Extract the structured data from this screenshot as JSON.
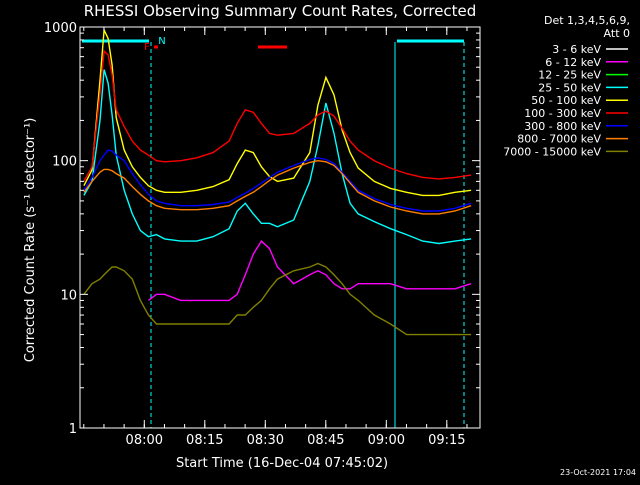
{
  "chart_data": {
    "type": "line",
    "title": "RHESSI Observing Summary Count Rates, Corrected",
    "xlabel": "Start Time (16-Dec-04 07:45:02)",
    "ylabel": "Corrected Count Rate (s⁻¹ detector⁻¹)",
    "yscale": "log",
    "ylim": [
      1,
      1000
    ],
    "xlim_minutes": [
      -0.97,
      98.2
    ],
    "x_unit": "minutes after 07:45:02",
    "xtick_labels": [
      "08:00",
      "08:15",
      "08:30",
      "08:45",
      "09:00",
      "09:15"
    ],
    "xtick_minutes": [
      14.97,
      29.97,
      44.97,
      59.97,
      74.97,
      89.97
    ],
    "ytick_labels": [
      "1",
      "10",
      "100",
      "1000"
    ],
    "ytick_values": [
      1,
      10,
      100,
      1000
    ],
    "grid": false,
    "legend_header": [
      "Det 1,3,4,5,6,9,",
      "Att 0"
    ],
    "legend_position": "right",
    "timestamp": "23-Oct-2021 17:04",
    "x": [
      0,
      2,
      4,
      5,
      6,
      7,
      8,
      10,
      12,
      14,
      16,
      18,
      20,
      24,
      28,
      32,
      36,
      38,
      40,
      42,
      44,
      46,
      48,
      52,
      56,
      58,
      60,
      62,
      64,
      66,
      68,
      72,
      76,
      80,
      84,
      88,
      92,
      96
    ],
    "series": [
      {
        "name": "3 - 6 keV",
        "color": "#ffffff",
        "values": [
          null,
          null,
          null,
          null,
          null,
          null,
          null,
          null,
          null,
          null,
          null,
          null,
          null,
          null,
          null,
          null,
          null,
          null,
          null,
          null,
          null,
          null,
          null,
          null,
          null,
          null,
          null,
          null,
          null,
          null,
          null,
          null,
          null,
          null,
          null,
          null,
          null,
          null
        ]
      },
      {
        "name": "6 - 12 keV",
        "color": "#ff00ff",
        "values": [
          null,
          null,
          null,
          null,
          null,
          null,
          null,
          null,
          null,
          null,
          9,
          10,
          10,
          9,
          9,
          9,
          9,
          10,
          14,
          20,
          25,
          22,
          16,
          12,
          14,
          15,
          14,
          12,
          11,
          11,
          12,
          12,
          12,
          11,
          11,
          11,
          11,
          12
        ]
      },
      {
        "name": "12 - 25 keV",
        "color": "#00ff00",
        "values": [
          null,
          null,
          null,
          null,
          null,
          null,
          null,
          null,
          null,
          null,
          null,
          null,
          null,
          null,
          null,
          null,
          null,
          null,
          null,
          null,
          null,
          null,
          null,
          null,
          null,
          null,
          null,
          null,
          null,
          null,
          null,
          null,
          null,
          null,
          null,
          null,
          null,
          null
        ]
      },
      {
        "name": "25 - 50 keV",
        "color": "#00ffff",
        "values": [
          55,
          70,
          200,
          480,
          380,
          220,
          110,
          60,
          40,
          30,
          27,
          28,
          26,
          25,
          25,
          27,
          31,
          42,
          48,
          40,
          34,
          34,
          32,
          36,
          70,
          130,
          270,
          160,
          80,
          48,
          40,
          35,
          31,
          28,
          25,
          24,
          25,
          26
        ]
      },
      {
        "name": "50 - 100 keV",
        "color": "#ffff00",
        "values": [
          65,
          85,
          400,
          950,
          820,
          520,
          210,
          120,
          90,
          75,
          65,
          60,
          58,
          58,
          60,
          64,
          72,
          95,
          120,
          115,
          90,
          76,
          70,
          74,
          115,
          260,
          420,
          310,
          170,
          115,
          88,
          70,
          62,
          58,
          55,
          55,
          58,
          60
        ]
      },
      {
        "name": "100 - 300 keV",
        "color": "#ff0000",
        "values": [
          70,
          90,
          320,
          660,
          620,
          440,
          240,
          180,
          140,
          120,
          110,
          100,
          98,
          100,
          105,
          115,
          140,
          190,
          240,
          230,
          190,
          160,
          155,
          160,
          190,
          220,
          235,
          215,
          175,
          140,
          120,
          100,
          88,
          80,
          75,
          73,
          75,
          78
        ]
      },
      {
        "name": "300 - 800 keV",
        "color": "#0000ff",
        "values": [
          60,
          75,
          100,
          110,
          120,
          118,
          110,
          100,
          80,
          66,
          56,
          50,
          48,
          46,
          46,
          47,
          49,
          53,
          57,
          62,
          68,
          75,
          82,
          92,
          102,
          105,
          102,
          95,
          82,
          70,
          60,
          52,
          47,
          44,
          42,
          42,
          44,
          48
        ]
      },
      {
        "name": "800 - 7000 keV",
        "color": "#ff8000",
        "values": [
          58,
          70,
          82,
          86,
          86,
          84,
          80,
          74,
          64,
          56,
          50,
          46,
          44,
          43,
          43,
          44,
          46,
          50,
          54,
          58,
          64,
          71,
          78,
          88,
          97,
          100,
          98,
          92,
          80,
          68,
          58,
          50,
          45,
          42,
          40,
          40,
          42,
          46
        ]
      },
      {
        "name": "7000 - 15000 keV",
        "color": "#808000",
        "values": [
          10,
          12,
          13,
          14,
          15,
          16,
          16,
          15,
          13,
          9,
          7,
          6,
          6,
          6,
          6,
          6,
          6,
          7,
          7,
          8,
          9,
          11,
          13,
          15,
          16,
          17,
          16,
          14,
          12,
          10,
          9,
          7,
          6,
          5,
          5,
          5,
          5,
          5
        ]
      }
    ],
    "annotations": [
      {
        "text": "F",
        "color": "#ff0000"
      },
      {
        "text": "N",
        "color": "#00ffff"
      }
    ]
  }
}
